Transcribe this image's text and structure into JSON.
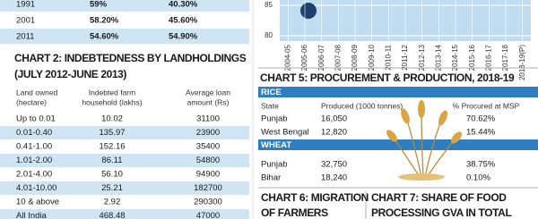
{
  "top_table": {
    "rows": [
      [
        "1991",
        "59%",
        "40.30%"
      ],
      [
        "2001",
        "58.20%",
        "45.60%"
      ],
      [
        "2011",
        "54.60%",
        "54.90%"
      ]
    ]
  },
  "chart2": {
    "title": "CHART 2: INDEBTEDNESS BY LANDHOLDINGS",
    "subtitle": "(JULY 2012-JUNE 2013)",
    "headers": [
      [
        "Land owned",
        "(hectare)"
      ],
      [
        "Indebted farm",
        "household (lakhs)"
      ],
      [
        "Average loan",
        "amount (Rs)"
      ]
    ],
    "rows": [
      [
        "Up to 0.01",
        "10.02",
        "31100"
      ],
      [
        "0.01-0.40",
        "135.97",
        "23900"
      ],
      [
        "0.41-1.00",
        "152.16",
        "35400"
      ],
      [
        "1.01-2.00",
        "86.11",
        "54800"
      ],
      [
        "2.01-4.00",
        "56.10",
        "94900"
      ],
      [
        "4.01-10.00",
        "25.21",
        "182700"
      ],
      [
        "10 & above",
        "2.92",
        "290300"
      ],
      [
        "All India",
        "468.48",
        "47000"
      ]
    ]
  },
  "chart_fragment": {
    "yticks": [
      85,
      80
    ],
    "categories": [
      "2004-05",
      "2005-06",
      "2006-07",
      "2007-08",
      "2008-09",
      "2009-10",
      "2010-11",
      "2011-12",
      "2012-13",
      "2013-14",
      "2014-15",
      "2015-16",
      "2016-17",
      "2017-18",
      "2018-19(P)"
    ]
  },
  "chart5": {
    "title": "CHART 5: PROCUREMENT & PRODUCTION, 2018-19",
    "headers": [
      "State",
      "Produced (1000 tonnes)",
      "% Procured at MSP"
    ],
    "sections": [
      {
        "name": "RICE",
        "rows": [
          [
            "Punjab",
            "16,050",
            "70.62%"
          ],
          [
            "West Bengal",
            "12,820",
            "15.44%"
          ]
        ]
      },
      {
        "name": "WHEAT",
        "rows": [
          [
            "Punjab",
            "32,750",
            "38.75%"
          ],
          [
            "Bihar",
            "18,240",
            "0.10%"
          ]
        ]
      }
    ]
  },
  "chart6": {
    "title_lines": [
      "CHART 6: MIGRATION",
      "OF FARMERS"
    ]
  },
  "chart7": {
    "title_lines": [
      "CHART 7: SHARE OF FOOD",
      "PROCESSING GVA IN TOTAL"
    ]
  }
}
